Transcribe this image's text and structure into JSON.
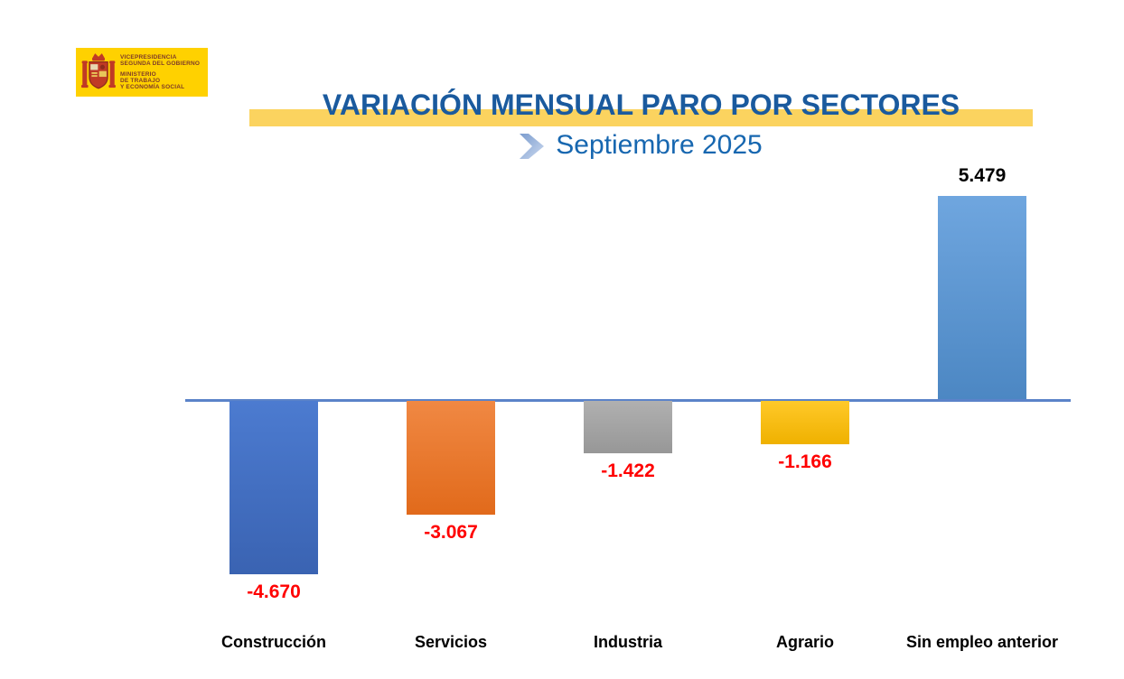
{
  "logo": {
    "agency_lines": [
      "VICEPRESIDENCIA",
      "SEGUNDA DEL GOBIERNO"
    ],
    "ministry_lines": [
      "MINISTERIO",
      "DE TRABAJO",
      "Y ECONOMÍA SOCIAL"
    ],
    "bg_color": "#FFD100",
    "text_color": "#7E3B28"
  },
  "header": {
    "title": "VARIACIÓN MENSUAL PARO POR SECTORES",
    "subtitle": "Septiembre 2025"
  },
  "colors": {
    "title_text": "#1A5A9E",
    "subtitle_text": "#1767B0",
    "highlight_band": "#FBD35F",
    "axis_line": "#5B83C9",
    "negative_value_label": "#FF0000",
    "positive_value_label": "#000000",
    "category_label": "#000000"
  },
  "chart_data": {
    "type": "bar",
    "title": "VARIACIÓN MENSUAL PARO POR SECTORES",
    "subtitle": "Septiembre 2025",
    "categories": [
      "Construcción",
      "Servicios",
      "Industria",
      "Agrario",
      "Sin empleo anterior"
    ],
    "values": [
      -4670,
      -3067,
      -1422,
      -1166,
      5479
    ],
    "value_labels": [
      "-4.670",
      "-3.067",
      "-1.422",
      "-1.166",
      "5.479"
    ],
    "bar_colors": [
      {
        "top": "#4C7BD0",
        "bottom": "#3A63B2"
      },
      {
        "top": "#F08843",
        "bottom": "#E16A1B"
      },
      {
        "top": "#B0B0B0",
        "bottom": "#979797"
      },
      {
        "top": "#FFC929",
        "bottom": "#EFB100"
      },
      {
        "top": "#6FA6DF",
        "bottom": "#4C87C3"
      }
    ],
    "baseline": 0,
    "ylim": [
      -5000,
      5800
    ],
    "grid": false,
    "legend": false,
    "xlabel": "",
    "ylabel": ""
  }
}
